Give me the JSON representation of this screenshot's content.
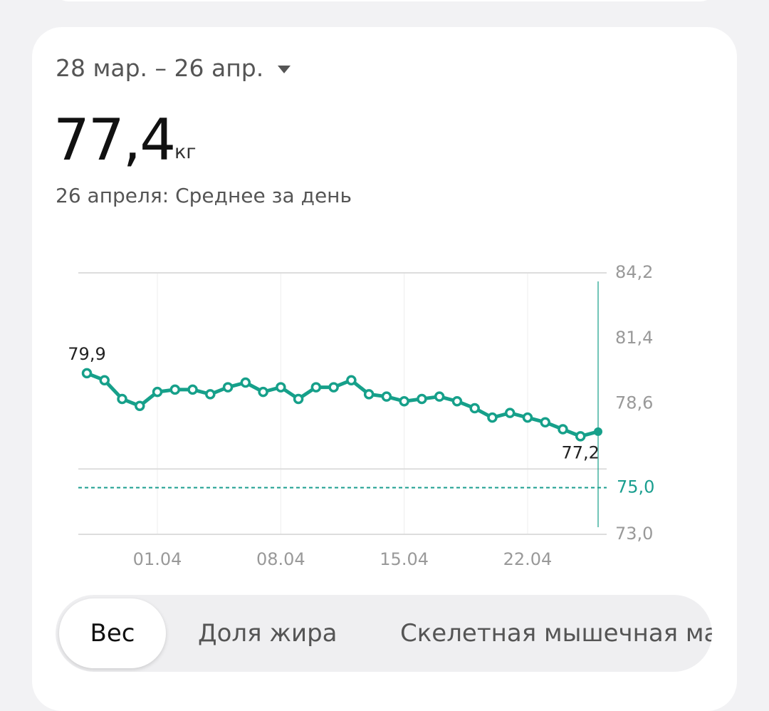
{
  "header": {
    "date_range": "28 мар. – 26 апр.",
    "value": "77,4",
    "unit": "кг",
    "subtitle": "26 апреля: Среднее за день"
  },
  "chart_data": {
    "type": "line",
    "categories": [
      null,
      null,
      null,
      null,
      "01.04",
      null,
      null,
      null,
      null,
      null,
      null,
      "08.04",
      null,
      null,
      null,
      null,
      null,
      null,
      "15.04",
      null,
      null,
      null,
      null,
      null,
      null,
      "22.04",
      null,
      null,
      null,
      null
    ],
    "series": [
      {
        "name": "Вес",
        "color": "#16a08a",
        "values": [
          79.9,
          79.6,
          78.8,
          78.5,
          79.1,
          79.2,
          79.2,
          79.0,
          79.3,
          79.5,
          79.1,
          79.3,
          78.8,
          79.3,
          79.3,
          79.6,
          79.0,
          78.9,
          78.7,
          78.8,
          78.9,
          78.7,
          78.4,
          78.0,
          78.2,
          78.0,
          77.8,
          77.5,
          77.2,
          77.4
        ],
        "value_labels": [
          "79,9",
          null,
          null,
          null,
          null,
          null,
          null,
          null,
          null,
          null,
          null,
          null,
          null,
          null,
          null,
          null,
          null,
          null,
          null,
          null,
          null,
          null,
          null,
          null,
          null,
          null,
          null,
          null,
          "77,2",
          null
        ]
      }
    ],
    "ylim": [
      73,
      84.2
    ],
    "yticks": [
      {
        "value": 84.2,
        "label": "84,2"
      },
      {
        "value": 81.4,
        "label": "81,4"
      },
      {
        "value": 78.6,
        "label": "78,6"
      },
      {
        "value": 73,
        "label": "73,0"
      }
    ],
    "ygrid": [
      84.2,
      75.8,
      73
    ],
    "target": {
      "value": 75,
      "label": "75,0",
      "color": "#1a9e8f"
    }
  },
  "tabs": [
    "Вес",
    "Доля жира",
    "Скелетная мышечная ма"
  ]
}
